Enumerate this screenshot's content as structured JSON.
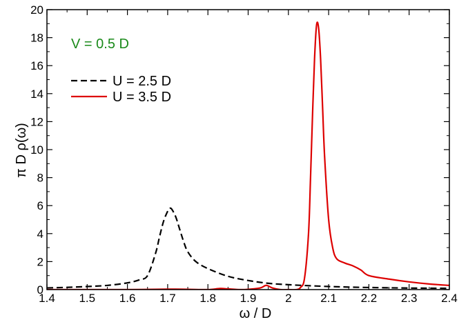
{
  "chart_data": {
    "type": "line",
    "title": "",
    "xlabel": "ω / D",
    "ylabel": "π D ρ(ω)",
    "xlim": [
      1.4,
      2.4
    ],
    "ylim": [
      0,
      20
    ],
    "xticks": [
      "1.4",
      "1.5",
      "1.6",
      "1.7",
      "1.8",
      "1.9",
      "2",
      "2.1",
      "2.2",
      "2.3",
      "2.4"
    ],
    "yticks": [
      "0",
      "2",
      "4",
      "6",
      "8",
      "10",
      "12",
      "14",
      "16",
      "18",
      "20"
    ],
    "grid": false,
    "legend_position": "upper-left",
    "annotation": {
      "text": "V = 0.5 D",
      "color": "#1a8a1a"
    },
    "series": [
      {
        "name": "U = 2.5 D",
        "color": "#000000",
        "style": "dashed",
        "x": [
          1.4,
          1.45,
          1.5,
          1.55,
          1.6,
          1.63,
          1.65,
          1.67,
          1.68,
          1.69,
          1.7,
          1.705,
          1.71,
          1.72,
          1.73,
          1.74,
          1.75,
          1.77,
          1.8,
          1.85,
          1.9,
          1.95,
          2.0,
          2.05,
          2.1,
          2.15,
          2.2,
          2.25,
          2.3,
          2.35,
          2.4
        ],
        "y": [
          0.12,
          0.16,
          0.22,
          0.3,
          0.48,
          0.7,
          1.0,
          2.6,
          3.8,
          4.9,
          5.6,
          5.8,
          5.75,
          5.2,
          4.3,
          3.4,
          2.7,
          2.0,
          1.5,
          0.95,
          0.65,
          0.45,
          0.35,
          0.28,
          0.22,
          0.18,
          0.15,
          0.13,
          0.11,
          0.1,
          0.09
        ]
      },
      {
        "name": "U = 3.5 D",
        "color": "#dd0000",
        "style": "solid",
        "x": [
          1.4,
          1.5,
          1.6,
          1.7,
          1.75,
          1.8,
          1.83,
          1.85,
          1.88,
          1.9,
          1.93,
          1.945,
          1.96,
          1.98,
          2.0,
          2.02,
          2.03,
          2.04,
          2.05,
          2.055,
          2.06,
          2.065,
          2.07,
          2.075,
          2.08,
          2.085,
          2.09,
          2.1,
          2.11,
          2.12,
          2.14,
          2.16,
          2.18,
          2.2,
          2.25,
          2.3,
          2.35,
          2.4
        ],
        "y": [
          0.0,
          0.0,
          0.0,
          0.03,
          0.02,
          0.0,
          0.08,
          0.05,
          0.0,
          0.02,
          0.12,
          0.3,
          0.12,
          0.0,
          0.0,
          0.0,
          0.15,
          0.8,
          4.0,
          8.0,
          12.5,
          16.5,
          18.9,
          18.7,
          16.5,
          13.0,
          9.5,
          5.0,
          3.0,
          2.2,
          1.9,
          1.7,
          1.4,
          1.0,
          0.75,
          0.55,
          0.4,
          0.3
        ]
      }
    ]
  }
}
